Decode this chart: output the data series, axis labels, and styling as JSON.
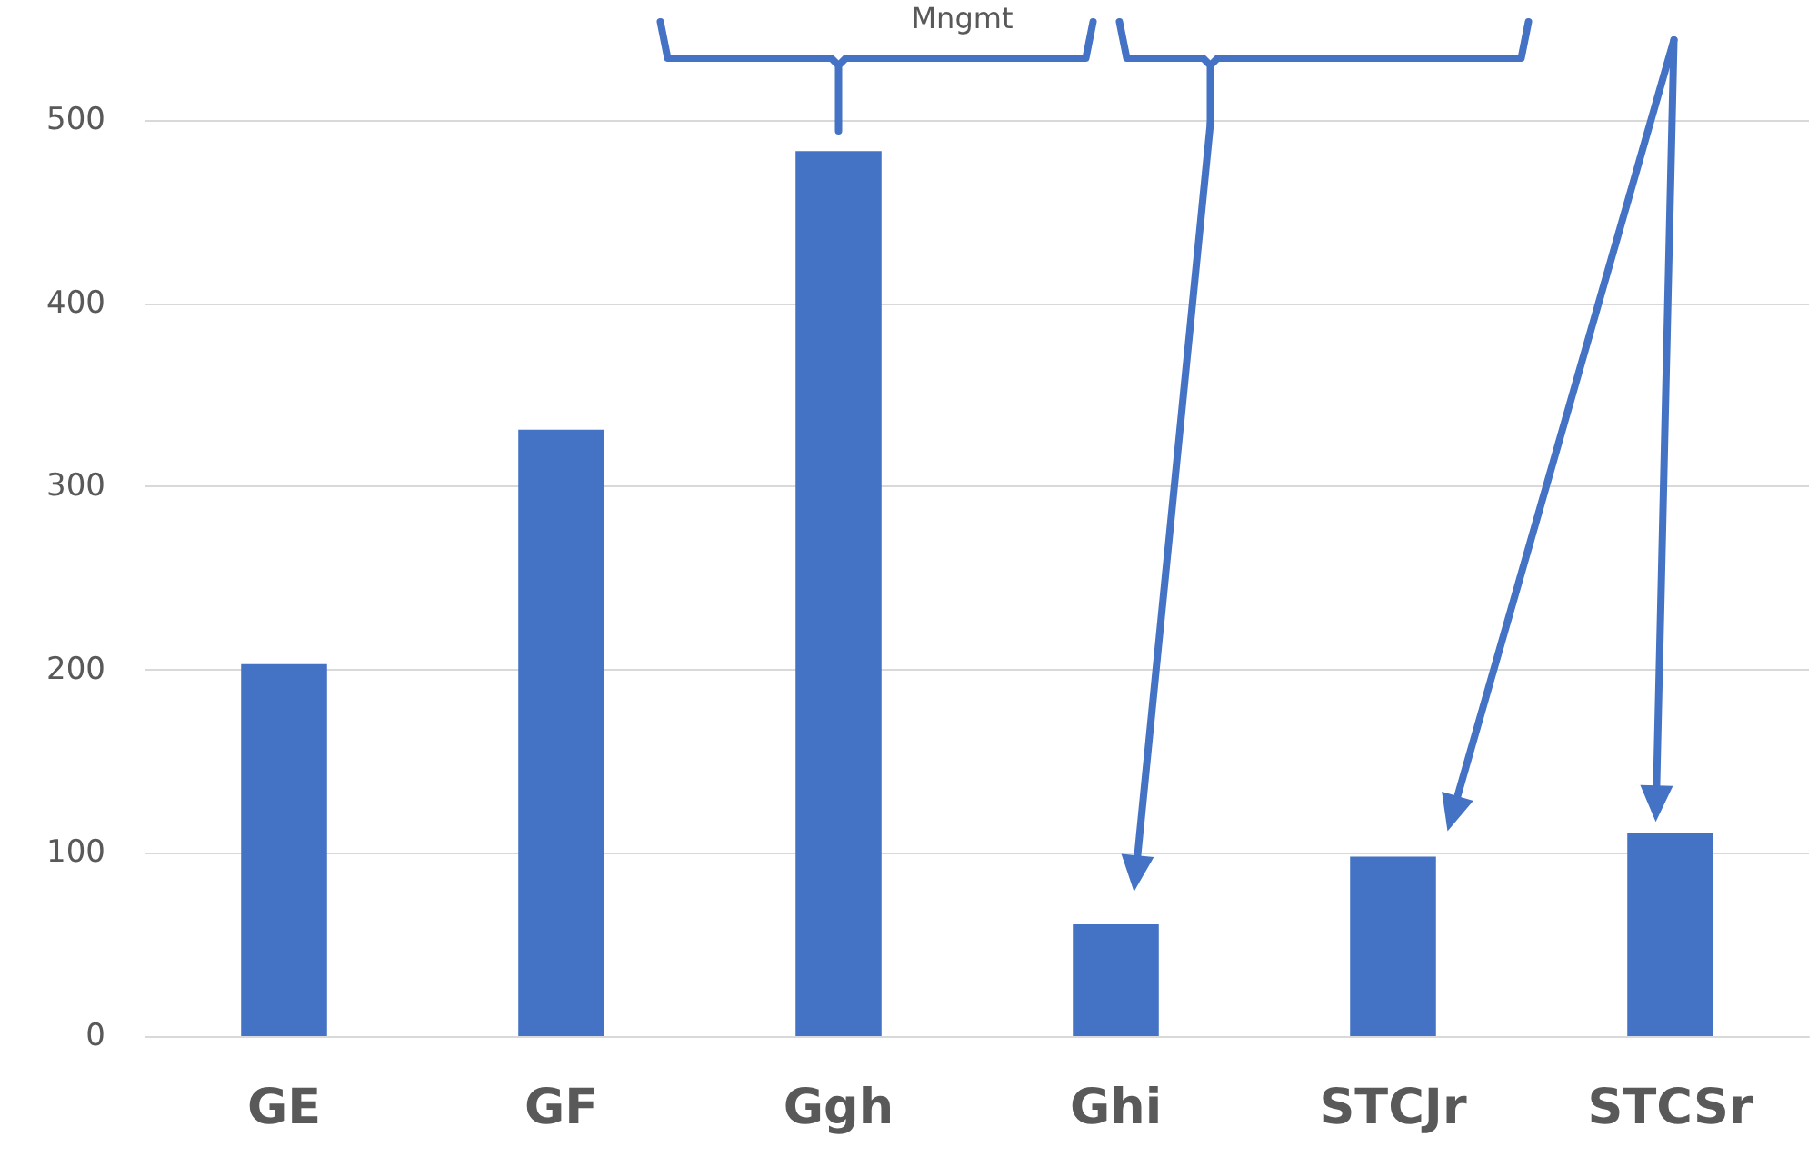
{
  "chart_data": {
    "type": "bar",
    "categories": [
      "GE",
      "GF",
      "Ggh",
      "Ghi",
      "STCJr",
      "STCSr"
    ],
    "values": [
      203,
      331,
      483,
      61,
      98,
      111
    ],
    "color": "#4472c4",
    "ylim": [
      0,
      500
    ],
    "yticks": [
      0,
      100,
      200,
      300,
      400,
      500
    ],
    "grid": "y",
    "annotations": [
      "Mngmt"
    ]
  }
}
